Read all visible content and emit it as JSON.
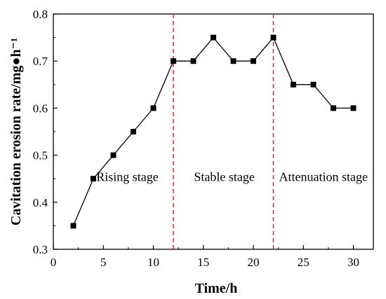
{
  "chart_data": {
    "type": "line",
    "title": "",
    "xlabel": "Time/h",
    "ylabel": "Cavitation erosion rate/mg●h⁻¹",
    "xlim": [
      0,
      32
    ],
    "ylim": [
      0.3,
      0.8
    ],
    "x_ticks": [
      0,
      5,
      10,
      15,
      20,
      25,
      30
    ],
    "y_ticks": [
      0.3,
      0.4,
      0.5,
      0.6,
      0.7,
      0.8
    ],
    "x_tick_labels": [
      "0",
      "5",
      "10",
      "15",
      "20",
      "25",
      "30"
    ],
    "y_tick_labels": [
      "0.3",
      "0.4",
      "0.5",
      "0.6",
      "0.7",
      "0.8"
    ],
    "grid": false,
    "series": [
      {
        "x": [
          2,
          4,
          6,
          8,
          10,
          12,
          14,
          16,
          18,
          20,
          22,
          24,
          26,
          28,
          30
        ],
        "y": [
          0.35,
          0.45,
          0.5,
          0.55,
          0.6,
          0.7,
          0.7,
          0.75,
          0.7,
          0.7,
          0.75,
          0.65,
          0.65,
          0.6,
          0.6
        ],
        "color": "#000000",
        "marker": "square"
      }
    ],
    "dividers": {
      "x": [
        12,
        22
      ],
      "color": "#d62728",
      "style": "dashed"
    },
    "annotations": [
      {
        "text": "Rising stage",
        "x": 7.4,
        "y": 0.445
      },
      {
        "text": "Stable stage",
        "x": 17.1,
        "y": 0.445
      },
      {
        "text": "Attenuation stage",
        "x": 27,
        "y": 0.445
      }
    ]
  }
}
